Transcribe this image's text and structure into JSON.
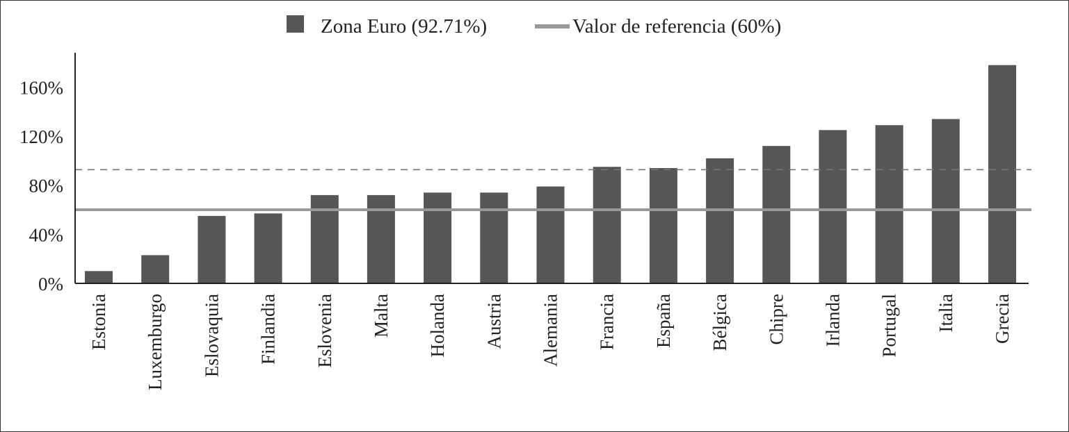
{
  "chart_data": {
    "type": "bar",
    "categories": [
      "Estonia",
      "Luxemburgo",
      "Eslovaquia",
      "Finlandia",
      "Eslovenia",
      "Malta",
      "Holanda",
      "Austria",
      "Alemania",
      "Francia",
      "España",
      "Bélgica",
      "Chipre",
      "Irlanda",
      "Portugal",
      "Italia",
      "Grecia"
    ],
    "series": [
      {
        "name": "Zona Euro (92.71%)",
        "values": [
          10,
          23,
          55,
          57,
          72,
          72,
          74,
          74,
          79,
          95,
          94,
          102,
          112,
          125,
          129,
          134,
          178
        ],
        "color": "#565656"
      }
    ],
    "reference_lines": [
      {
        "name": "Valor de referencia (60%)",
        "value": 60,
        "color": "#999999",
        "style": "solid"
      },
      {
        "value": 92.71,
        "color": "#777777",
        "style": "dashed"
      }
    ],
    "y_ticks": [
      {
        "value": 0,
        "label": "0%"
      },
      {
        "value": 40,
        "label": "40%"
      },
      {
        "value": 80,
        "label": "80%"
      },
      {
        "value": 120,
        "label": "120%"
      },
      {
        "value": 160,
        "label": "160%"
      }
    ],
    "ylim": [
      0,
      188
    ],
    "xlabel": "",
    "ylabel": "",
    "title": "",
    "grid": false,
    "legend_position": "top-center"
  }
}
